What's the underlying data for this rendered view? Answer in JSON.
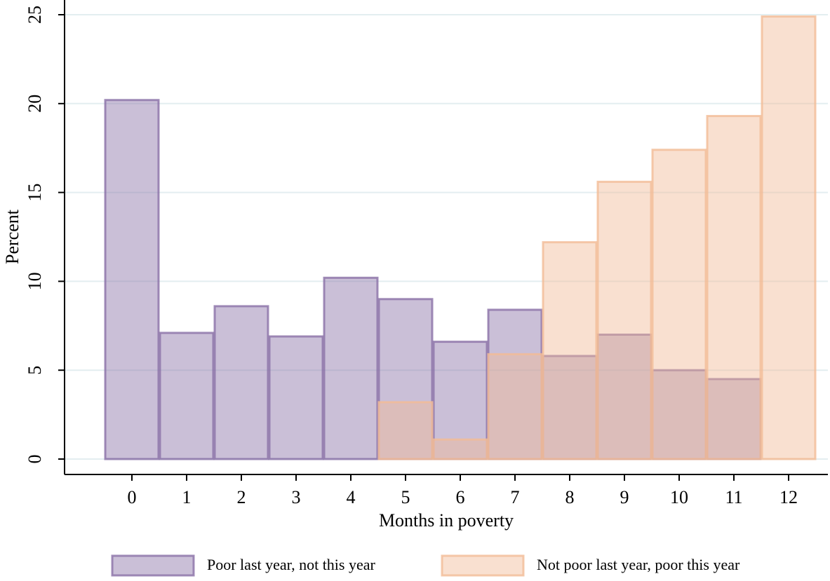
{
  "chart_data": {
    "type": "bar",
    "x_label": "Months in poverty",
    "y_label": "Percent",
    "categories": [
      "0",
      "1",
      "2",
      "3",
      "4",
      "5",
      "6",
      "7",
      "8",
      "9",
      "10",
      "11",
      "12"
    ],
    "series": [
      {
        "name": "Poor last year, not this year",
        "color": "#8a70a6",
        "values": [
          20.2,
          7.1,
          8.6,
          6.9,
          10.2,
          9.0,
          6.6,
          8.4,
          5.8,
          7.0,
          5.0,
          4.5,
          null
        ]
      },
      {
        "name": "Not poor last year, poor this year",
        "color": "#f2bb96",
        "values": [
          null,
          null,
          null,
          null,
          null,
          3.2,
          1.1,
          5.9,
          12.2,
          15.6,
          17.4,
          19.3,
          24.9
        ]
      }
    ],
    "ylim": [
      0,
      25
    ],
    "yticks": [
      0,
      5,
      10,
      15,
      20,
      25
    ],
    "grid": true,
    "legend": "bottom"
  }
}
